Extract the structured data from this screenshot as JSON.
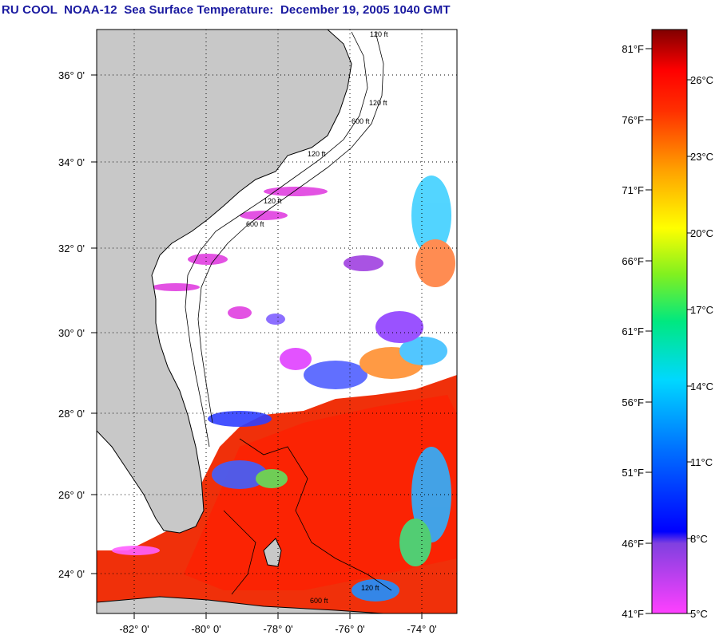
{
  "title": "RU COOL  NOAA-12  Sea Surface Temperature:  December 19, 2005 1040 GMT",
  "map": {
    "lat_labels": [
      "36° 0'",
      "34° 0'",
      "32° 0'",
      "30° 0'",
      "28° 0'",
      "26° 0'",
      "24° 0'"
    ],
    "lon_labels": [
      "-82° 0'",
      "-80° 0'",
      "-78° 0'",
      "-76° 0'",
      "-74° 0'"
    ],
    "contour_labels": [
      "120 ft",
      "120 ft",
      "600 ft",
      "120 ft",
      "600 ft",
      "120 ft",
      "120 ft",
      "600 ft"
    ],
    "colors": {
      "land": "#c8c8c8",
      "cloud": "#ffffff",
      "warm": "#ff2a00"
    }
  },
  "colorbar": {
    "fahrenheit": [
      "81°F",
      "76°F",
      "71°F",
      "66°F",
      "61°F",
      "56°F",
      "51°F",
      "46°F",
      "41°F"
    ],
    "celsius": [
      "26°C",
      "23°C",
      "20°C",
      "17°C",
      "14°C",
      "11°C",
      "8°C",
      "5°C"
    ]
  }
}
